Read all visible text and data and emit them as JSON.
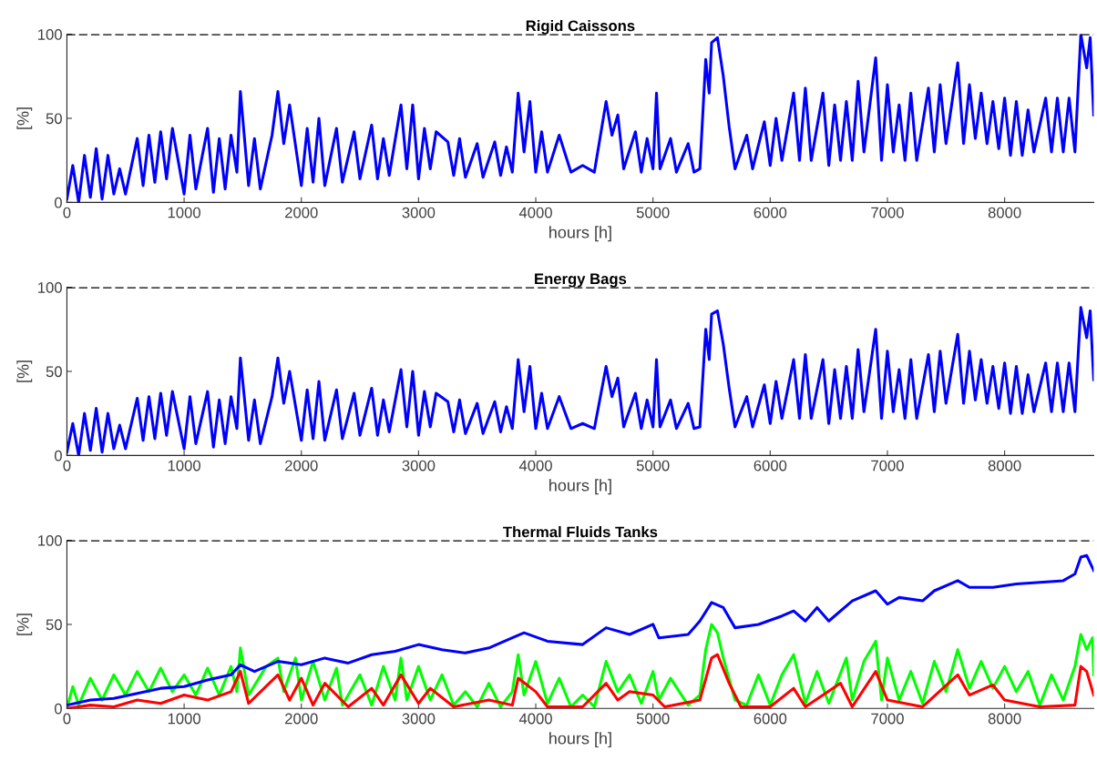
{
  "chart_data": [
    {
      "type": "line",
      "title": "Rigid Caissons",
      "xlabel": "hours [h]",
      "ylabel": "[%]",
      "xlim": [
        0,
        8760
      ],
      "ylim": [
        0,
        100
      ],
      "xticks": [
        0,
        1000,
        2000,
        3000,
        4000,
        5000,
        6000,
        7000,
        8000
      ],
      "yticks": [
        0,
        50,
        100
      ],
      "grid": false,
      "legend": false,
      "ref_lines": [
        {
          "axis": "y",
          "value": 100,
          "color": "#000000",
          "line_style": "dashed"
        }
      ],
      "series": [
        {
          "color": "#0000ff",
          "x": [
            0,
            50,
            100,
            150,
            200,
            250,
            300,
            350,
            400,
            450,
            500,
            600,
            650,
            700,
            750,
            800,
            850,
            900,
            1000,
            1050,
            1100,
            1200,
            1250,
            1300,
            1350,
            1400,
            1450,
            1480,
            1550,
            1600,
            1650,
            1750,
            1800,
            1850,
            1900,
            2000,
            2050,
            2100,
            2150,
            2200,
            2300,
            2350,
            2450,
            2500,
            2600,
            2650,
            2700,
            2750,
            2850,
            2900,
            2950,
            3000,
            3050,
            3100,
            3150,
            3250,
            3300,
            3350,
            3400,
            3500,
            3550,
            3650,
            3700,
            3750,
            3800,
            3850,
            3900,
            3950,
            4000,
            4050,
            4100,
            4200,
            4300,
            4400,
            4500,
            4600,
            4650,
            4700,
            4750,
            4850,
            4900,
            4950,
            5000,
            5030,
            5060,
            5150,
            5200,
            5300,
            5350,
            5400,
            5450,
            5480,
            5500,
            5550,
            5600,
            5650,
            5700,
            5800,
            5850,
            5950,
            6000,
            6050,
            6100,
            6200,
            6250,
            6300,
            6350,
            6450,
            6500,
            6550,
            6600,
            6650,
            6700,
            6750,
            6800,
            6900,
            6950,
            7000,
            7050,
            7100,
            7150,
            7200,
            7250,
            7350,
            7400,
            7450,
            7500,
            7600,
            7650,
            7700,
            7750,
            7800,
            7850,
            7900,
            7950,
            8000,
            8050,
            8100,
            8150,
            8200,
            8250,
            8350,
            8400,
            8450,
            8500,
            8550,
            8600,
            8650,
            8700,
            8730,
            8760
          ],
          "values": [
            2,
            22,
            0,
            28,
            3,
            32,
            2,
            28,
            5,
            20,
            5,
            38,
            10,
            40,
            12,
            42,
            14,
            44,
            5,
            40,
            8,
            44,
            6,
            38,
            8,
            40,
            18,
            66,
            10,
            38,
            8,
            40,
            66,
            35,
            58,
            10,
            44,
            12,
            50,
            10,
            44,
            12,
            42,
            14,
            46,
            14,
            38,
            16,
            58,
            20,
            58,
            14,
            44,
            20,
            42,
            36,
            16,
            38,
            15,
            35,
            15,
            36,
            16,
            33,
            18,
            65,
            30,
            60,
            18,
            42,
            18,
            40,
            18,
            22,
            18,
            60,
            40,
            52,
            20,
            42,
            18,
            38,
            20,
            65,
            20,
            38,
            18,
            35,
            18,
            20,
            85,
            65,
            95,
            98,
            75,
            45,
            20,
            40,
            20,
            48,
            22,
            50,
            25,
            65,
            25,
            68,
            25,
            65,
            22,
            58,
            25,
            60,
            25,
            72,
            30,
            86,
            25,
            70,
            30,
            58,
            25,
            65,
            25,
            68,
            30,
            70,
            35,
            83,
            35,
            70,
            38,
            65,
            35,
            60,
            32,
            62,
            28,
            60,
            28,
            55,
            30,
            62,
            30,
            62,
            30,
            62,
            30,
            100,
            80,
            98,
            52
          ]
        }
      ]
    },
    {
      "type": "line",
      "title": "Energy Bags",
      "xlabel": "hours [h]",
      "ylabel": "[%]",
      "xlim": [
        0,
        8760
      ],
      "ylim": [
        0,
        100
      ],
      "xticks": [
        0,
        1000,
        2000,
        3000,
        4000,
        5000,
        6000,
        7000,
        8000
      ],
      "yticks": [
        0,
        50,
        100
      ],
      "grid": false,
      "legend": false,
      "ref_lines": [
        {
          "axis": "y",
          "value": 100,
          "color": "#000000",
          "line_style": "dashed"
        }
      ],
      "series": [
        {
          "color": "#0000ff",
          "x": [
            0,
            50,
            100,
            150,
            200,
            250,
            300,
            350,
            400,
            450,
            500,
            600,
            650,
            700,
            750,
            800,
            850,
            900,
            1000,
            1050,
            1100,
            1200,
            1250,
            1300,
            1350,
            1400,
            1450,
            1480,
            1550,
            1600,
            1650,
            1750,
            1800,
            1850,
            1900,
            2000,
            2050,
            2100,
            2150,
            2200,
            2300,
            2350,
            2450,
            2500,
            2600,
            2650,
            2700,
            2750,
            2850,
            2900,
            2950,
            3000,
            3050,
            3100,
            3150,
            3250,
            3300,
            3350,
            3400,
            3500,
            3550,
            3650,
            3700,
            3750,
            3800,
            3850,
            3900,
            3950,
            4000,
            4050,
            4100,
            4200,
            4300,
            4400,
            4500,
            4600,
            4650,
            4700,
            4750,
            4850,
            4900,
            4950,
            5000,
            5030,
            5060,
            5150,
            5200,
            5300,
            5350,
            5400,
            5450,
            5480,
            5500,
            5550,
            5600,
            5650,
            5700,
            5800,
            5850,
            5950,
            6000,
            6050,
            6100,
            6200,
            6250,
            6300,
            6350,
            6450,
            6500,
            6550,
            6600,
            6650,
            6700,
            6750,
            6800,
            6900,
            6950,
            7000,
            7050,
            7100,
            7150,
            7200,
            7250,
            7350,
            7400,
            7450,
            7500,
            7600,
            7650,
            7700,
            7750,
            7800,
            7850,
            7900,
            7950,
            8000,
            8050,
            8100,
            8150,
            8200,
            8250,
            8350,
            8400,
            8450,
            8500,
            8550,
            8600,
            8650,
            8700,
            8730,
            8760
          ],
          "values": [
            2,
            19,
            0,
            25,
            3,
            28,
            2,
            25,
            4,
            18,
            4,
            34,
            9,
            35,
            10,
            37,
            12,
            38,
            4,
            35,
            7,
            38,
            5,
            33,
            7,
            35,
            16,
            58,
            9,
            33,
            7,
            35,
            58,
            31,
            50,
            9,
            39,
            10,
            44,
            9,
            39,
            10,
            37,
            12,
            40,
            12,
            33,
            14,
            51,
            17,
            50,
            12,
            38,
            17,
            37,
            32,
            14,
            33,
            13,
            31,
            13,
            32,
            14,
            29,
            16,
            57,
            26,
            53,
            16,
            37,
            16,
            35,
            16,
            19,
            16,
            53,
            35,
            46,
            17,
            37,
            16,
            33,
            17,
            57,
            17,
            33,
            16,
            31,
            16,
            17,
            75,
            57,
            84,
            86,
            66,
            40,
            17,
            35,
            17,
            42,
            19,
            44,
            22,
            57,
            22,
            60,
            22,
            57,
            19,
            51,
            22,
            53,
            22,
            63,
            26,
            75,
            22,
            62,
            26,
            51,
            22,
            57,
            22,
            60,
            26,
            62,
            31,
            72,
            31,
            62,
            33,
            57,
            31,
            53,
            28,
            55,
            25,
            53,
            25,
            48,
            26,
            55,
            26,
            55,
            26,
            55,
            26,
            88,
            70,
            86,
            45
          ]
        }
      ]
    },
    {
      "type": "line",
      "title": "Thermal Fluids Tanks",
      "xlabel": "hours [h]",
      "ylabel": "[%]",
      "xlim": [
        0,
        8760
      ],
      "ylim": [
        0,
        100
      ],
      "xticks": [
        0,
        1000,
        2000,
        3000,
        4000,
        5000,
        6000,
        7000,
        8000
      ],
      "yticks": [
        0,
        50,
        100
      ],
      "grid": false,
      "legend": false,
      "ref_lines": [
        {
          "axis": "y",
          "value": 100,
          "color": "#000000",
          "line_style": "dashed"
        }
      ],
      "series": [
        {
          "color": "#00ff00",
          "x": [
            0,
            50,
            100,
            200,
            300,
            400,
            500,
            600,
            700,
            800,
            900,
            1000,
            1100,
            1200,
            1300,
            1400,
            1450,
            1480,
            1550,
            1700,
            1800,
            1850,
            1950,
            2000,
            2100,
            2200,
            2300,
            2350,
            2500,
            2600,
            2700,
            2800,
            2850,
            2900,
            3000,
            3100,
            3200,
            3300,
            3400,
            3500,
            3600,
            3700,
            3800,
            3850,
            3900,
            4000,
            4100,
            4200,
            4300,
            4400,
            4500,
            4600,
            4700,
            4800,
            4900,
            5000,
            5050,
            5150,
            5300,
            5400,
            5450,
            5500,
            5550,
            5600,
            5700,
            5800,
            5900,
            6000,
            6100,
            6200,
            6300,
            6400,
            6500,
            6650,
            6700,
            6800,
            6900,
            6950,
            7000,
            7100,
            7200,
            7300,
            7400,
            7500,
            7600,
            7700,
            7800,
            7900,
            8000,
            8100,
            8200,
            8300,
            8400,
            8500,
            8600,
            8650,
            8700,
            8750,
            8760
          ],
          "values": [
            0,
            13,
            2,
            18,
            5,
            20,
            8,
            22,
            10,
            24,
            10,
            20,
            8,
            24,
            8,
            25,
            10,
            36,
            8,
            25,
            30,
            10,
            30,
            5,
            28,
            5,
            24,
            2,
            20,
            2,
            25,
            5,
            30,
            5,
            25,
            5,
            20,
            2,
            10,
            1,
            15,
            1,
            10,
            32,
            8,
            28,
            3,
            18,
            1,
            8,
            1,
            28,
            10,
            20,
            3,
            22,
            5,
            18,
            2,
            8,
            35,
            50,
            45,
            30,
            5,
            2,
            20,
            2,
            20,
            32,
            3,
            22,
            3,
            30,
            5,
            28,
            40,
            5,
            30,
            5,
            22,
            3,
            28,
            10,
            35,
            12,
            28,
            12,
            25,
            10,
            22,
            2,
            20,
            5,
            25,
            44,
            35,
            42,
            20
          ]
        },
        {
          "color": "#ff0000",
          "x": [
            0,
            200,
            400,
            600,
            800,
            1000,
            1200,
            1400,
            1480,
            1550,
            1800,
            1900,
            2000,
            2100,
            2200,
            2400,
            2600,
            2700,
            2850,
            3000,
            3100,
            3300,
            3600,
            3800,
            3850,
            4000,
            4100,
            4400,
            4600,
            4700,
            4800,
            5000,
            5100,
            5400,
            5500,
            5550,
            5650,
            5750,
            6000,
            6200,
            6300,
            6600,
            6700,
            6900,
            7000,
            7300,
            7600,
            7700,
            7900,
            8000,
            8300,
            8600,
            8650,
            8700,
            8760
          ],
          "values": [
            0,
            2,
            1,
            5,
            3,
            8,
            5,
            10,
            22,
            3,
            20,
            5,
            18,
            2,
            15,
            1,
            12,
            2,
            20,
            3,
            12,
            1,
            5,
            2,
            18,
            10,
            1,
            1,
            15,
            5,
            10,
            8,
            1,
            5,
            30,
            32,
            15,
            1,
            1,
            12,
            1,
            15,
            1,
            22,
            5,
            1,
            20,
            8,
            14,
            5,
            1,
            2,
            25,
            22,
            8
          ]
        },
        {
          "color": "#0000ff",
          "x": [
            0,
            200,
            400,
            600,
            800,
            1000,
            1200,
            1400,
            1480,
            1600,
            1800,
            2000,
            2200,
            2400,
            2600,
            2800,
            3000,
            3200,
            3400,
            3600,
            3800,
            3900,
            4100,
            4400,
            4600,
            4800,
            5000,
            5050,
            5300,
            5400,
            5500,
            5600,
            5700,
            5900,
            6100,
            6200,
            6300,
            6400,
            6500,
            6700,
            6900,
            7000,
            7100,
            7300,
            7400,
            7600,
            7700,
            7900,
            8100,
            8300,
            8500,
            8600,
            8650,
            8700,
            8760
          ],
          "values": [
            2,
            5,
            6,
            9,
            12,
            13,
            17,
            20,
            26,
            22,
            28,
            26,
            30,
            27,
            32,
            34,
            38,
            35,
            33,
            36,
            42,
            45,
            40,
            38,
            48,
            44,
            50,
            42,
            44,
            52,
            63,
            60,
            48,
            50,
            55,
            58,
            52,
            60,
            52,
            64,
            70,
            62,
            66,
            64,
            70,
            76,
            72,
            72,
            74,
            75,
            76,
            80,
            90,
            91,
            82
          ]
        }
      ]
    }
  ]
}
